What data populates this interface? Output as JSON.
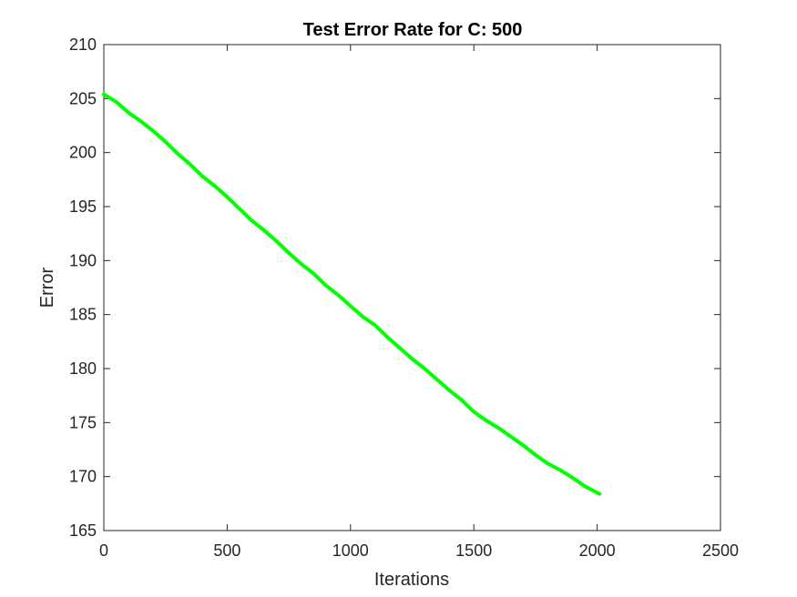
{
  "chart_data": {
    "type": "line",
    "title": "Test Error Rate for C: 500",
    "xlabel": "Iterations",
    "ylabel": "Error",
    "xlim": [
      0,
      2500
    ],
    "ylim": [
      165,
      210
    ],
    "xticks": [
      0,
      500,
      1000,
      1500,
      2000,
      2500
    ],
    "yticks": [
      165,
      170,
      175,
      180,
      185,
      190,
      195,
      200,
      205,
      210
    ],
    "grid": false,
    "series": [
      {
        "color": "#00ff00",
        "x": [
          0,
          50,
          100,
          150,
          200,
          250,
          300,
          350,
          400,
          450,
          500,
          550,
          600,
          650,
          700,
          750,
          800,
          850,
          900,
          950,
          1000,
          1050,
          1100,
          1150,
          1200,
          1250,
          1300,
          1350,
          1400,
          1450,
          1500,
          1550,
          1600,
          1650,
          1700,
          1750,
          1800,
          1850,
          1900,
          1950,
          2000,
          2010
        ],
        "y": [
          205.4,
          204.7,
          203.7,
          202.9,
          202.0,
          201.0,
          199.9,
          198.9,
          197.8,
          196.9,
          195.9,
          194.8,
          193.7,
          192.8,
          191.8,
          190.7,
          189.7,
          188.8,
          187.7,
          186.8,
          185.8,
          184.8,
          184.0,
          182.9,
          181.9,
          180.9,
          180.0,
          179.0,
          178.0,
          177.1,
          176.0,
          175.2,
          174.5,
          173.7,
          172.9,
          172.0,
          171.2,
          170.6,
          169.9,
          169.1,
          168.5,
          168.4
        ]
      }
    ]
  }
}
